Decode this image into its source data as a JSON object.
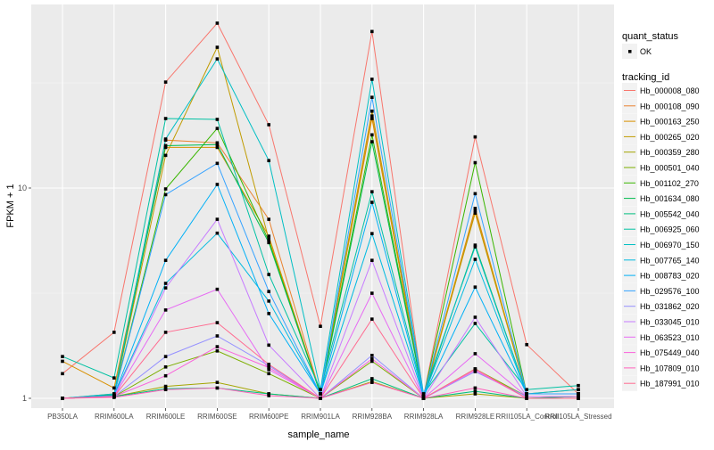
{
  "chart_data": {
    "type": "line",
    "title": "",
    "xlabel": "sample_name",
    "ylabel": "FPKM + 1",
    "y_scale": "log10",
    "ylim": [
      0.95,
      66
    ],
    "y_ticks": [
      1,
      10
    ],
    "y_tick_labels": [
      "1",
      "10"
    ],
    "grid": true,
    "categories": [
      "PB350LA",
      "RRIM600LA",
      "RRIM600LE",
      "RRIM600SE",
      "RRIM600PE",
      "RRIM901LA",
      "RRIM928BA",
      "RRIM928LA",
      "RRIM928LE",
      "RRII105LA_Control",
      "RRII105LA_Stressed"
    ],
    "legend_position": "right",
    "legend_shape": {
      "title": "quant_status",
      "entries": [
        "OK"
      ]
    },
    "legend_color_title": "tracking_id",
    "series": [
      {
        "name": "Hb_000008_080",
        "color": "#F8766D",
        "values": [
          1.31,
          2.06,
          31.9,
          60.8,
          20.0,
          2.2,
          55.5,
          1.02,
          17.5,
          1.8,
          1.05
        ]
      },
      {
        "name": "Hb_000108_090",
        "color": "#EA8331",
        "values": [
          1.0,
          1.05,
          16.9,
          16.4,
          7.1,
          1.05,
          22.0,
          1.0,
          7.8,
          1.05,
          1.1
        ]
      },
      {
        "name": "Hb_000163_250",
        "color": "#D89000",
        "values": [
          1.5,
          1.12,
          15.6,
          15.6,
          5.9,
          1.05,
          21.4,
          1.02,
          8.0,
          1.05,
          1.05
        ]
      },
      {
        "name": "Hb_000265_020",
        "color": "#C09B00",
        "values": [
          1.0,
          1.03,
          14.3,
          46.7,
          5.7,
          1.05,
          23.2,
          1.02,
          7.6,
          1.05,
          1.05
        ]
      },
      {
        "name": "Hb_000359_280",
        "color": "#A3A500",
        "values": [
          1.0,
          1.02,
          1.14,
          1.19,
          1.05,
          1.0,
          1.2,
          1.0,
          1.05,
          1.0,
          1.02
        ]
      },
      {
        "name": "Hb_000501_040",
        "color": "#7CAE00",
        "values": [
          1.0,
          1.02,
          1.41,
          1.68,
          1.31,
          1.0,
          1.5,
          1.0,
          1.38,
          1.02,
          1.02
        ]
      },
      {
        "name": "Hb_001102_270",
        "color": "#39B600",
        "values": [
          1.0,
          1.03,
          9.9,
          19.2,
          5.6,
          1.05,
          17.9,
          1.02,
          13.2,
          1.05,
          1.05
        ]
      },
      {
        "name": "Hb_001634_080",
        "color": "#00BB4E",
        "values": [
          1.0,
          1.04,
          15.9,
          16.1,
          5.5,
          1.05,
          16.6,
          1.02,
          5.35,
          1.05,
          1.05
        ]
      },
      {
        "name": "Hb_005542_040",
        "color": "#00BF7D",
        "values": [
          1.0,
          1.02,
          1.11,
          1.12,
          1.05,
          1.0,
          1.24,
          1.0,
          1.08,
          1.0,
          1.02
        ]
      },
      {
        "name": "Hb_006925_060",
        "color": "#00C1A3",
        "values": [
          1.58,
          1.25,
          21.4,
          21.2,
          3.88,
          1.1,
          9.6,
          1.05,
          2.27,
          1.1,
          1.15
        ]
      },
      {
        "name": "Hb_006970_150",
        "color": "#00BFC4",
        "values": [
          1.0,
          1.05,
          17.1,
          41.1,
          13.5,
          1.1,
          32.9,
          1.05,
          5.25,
          1.05,
          1.1
        ]
      },
      {
        "name": "Hb_007765_140",
        "color": "#00BAE0",
        "values": [
          1.0,
          1.03,
          3.52,
          6.1,
          2.9,
          1.05,
          6.07,
          1.02,
          4.58,
          1.05,
          1.05
        ]
      },
      {
        "name": "Hb_008783_020",
        "color": "#00B0F6",
        "values": [
          1.0,
          1.03,
          4.53,
          10.4,
          2.53,
          1.05,
          8.55,
          1.02,
          3.38,
          1.05,
          1.05
        ]
      },
      {
        "name": "Hb_029576_100",
        "color": "#35A2FF",
        "values": [
          1.0,
          1.03,
          9.3,
          13.1,
          3.22,
          1.05,
          27.0,
          1.02,
          9.4,
          1.05,
          1.05
        ]
      },
      {
        "name": "Hb_031862_020",
        "color": "#9590FF",
        "values": [
          1.0,
          1.02,
          1.58,
          1.98,
          1.43,
          1.0,
          1.6,
          1.0,
          1.34,
          1.02,
          1.02
        ]
      },
      {
        "name": "Hb_033045_010",
        "color": "#C77CFF",
        "values": [
          1.0,
          1.02,
          3.35,
          7.1,
          1.79,
          1.0,
          4.53,
          1.0,
          2.43,
          1.02,
          1.02
        ]
      },
      {
        "name": "Hb_063523_010",
        "color": "#E76BF3",
        "values": [
          1.0,
          1.02,
          2.63,
          3.3,
          1.37,
          1.0,
          3.16,
          1.0,
          1.63,
          1.02,
          1.02
        ]
      },
      {
        "name": "Hb_075449_040",
        "color": "#FA62DB",
        "values": [
          1.0,
          1.02,
          1.28,
          1.76,
          1.4,
          1.0,
          1.54,
          1.0,
          1.36,
          1.0,
          1.0
        ]
      },
      {
        "name": "Hb_107809_010",
        "color": "#FF62BC",
        "values": [
          1.0,
          1.01,
          1.1,
          1.12,
          1.03,
          1.0,
          1.19,
          1.0,
          1.12,
          1.0,
          1.0
        ]
      },
      {
        "name": "Hb_187991_010",
        "color": "#FF6C91",
        "values": [
          1.0,
          1.02,
          2.06,
          2.29,
          1.45,
          1.0,
          2.38,
          1.0,
          1.38,
          1.0,
          1.0
        ]
      }
    ]
  }
}
